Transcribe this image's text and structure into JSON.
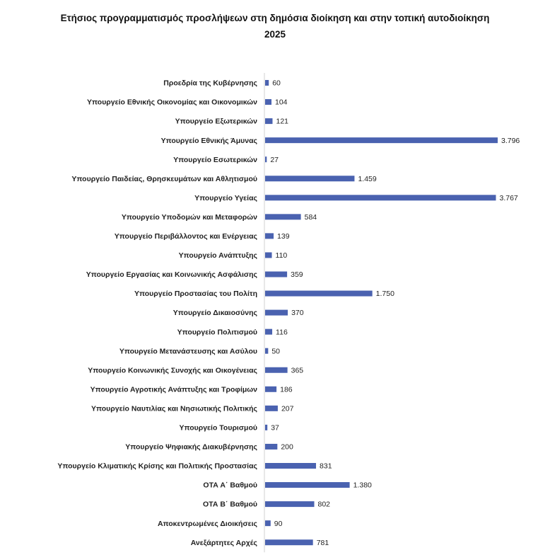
{
  "chart_data": {
    "type": "bar",
    "orientation": "horizontal",
    "title": "Ετήσιος προγραμματισμός προσλήψεων στη δημόσια διοίκηση και στην τοπική αυτοδιοίκηση 2025",
    "title_lines": [
      "Ετήσιος προγραμματισμός προσλήψεων στη δημόσια διοίκηση και στην τοπική αυτοδιοίκηση",
      "2025"
    ],
    "xlabel": "",
    "ylabel": "",
    "grid": false,
    "legend": "none",
    "bar_color": "#4a62b0",
    "categories": [
      "Προεδρία της Κυβέρνησης",
      "Υπουργείο Εθνικής Οικονομίας και Οικονομικών",
      "Υπουργείο Εξωτερικών",
      "Υπουργείο Εθνικής Άμυνας",
      "Υπουργείο Εσωτερικών",
      "Υπουργείο Παιδείας, Θρησκευμάτων και Αθλητισμού",
      "Υπουργείο Υγείας",
      "Υπουργείο Υποδομών και Μεταφορών",
      "Υπουργείο Περιβάλλοντος και Ενέργειας",
      "Υπουργείο Ανάπτυξης",
      "Υπουργείο Εργασίας και Κοινωνικής Ασφάλισης",
      "Υπουργείο Προστασίας του Πολίτη",
      "Υπουργείο Δικαιοσύνης",
      "Υπουργείο Πολιτισμού",
      "Υπουργείο Μετανάστευσης και Ασύλου",
      "Υπουργείο Κοινωνικής Συνοχής και Οικογένειας",
      "Υπουργείο Αγροτικής Ανάπτυξης και Τροφίμων",
      "Υπουργείο Ναυτιλίας και Νησιωτικής Πολιτικής",
      "Υπουργείο Τουρισμού",
      "Υπουργείο Ψηφιακής Διακυβέρνησης",
      "Υπουργείο Κλιματικής Κρίσης και Πολιτικής Προστασίας",
      "ΟΤΑ Α΄ Βαθμού",
      "ΟΤΑ Β΄ Βαθμού",
      "Αποκεντρωμένες Διοικήσεις",
      "Ανεξάρτητες Αρχές"
    ],
    "values": [
      60,
      104,
      121,
      3796,
      27,
      1459,
      3767,
      584,
      139,
      110,
      359,
      1750,
      370,
      116,
      50,
      365,
      186,
      207,
      37,
      200,
      831,
      1380,
      802,
      90,
      781
    ],
    "value_labels": [
      "60",
      "104",
      "121",
      "3.796",
      "27",
      "1.459",
      "3.767",
      "584",
      "139",
      "110",
      "359",
      "1.750",
      "370",
      "116",
      "50",
      "365",
      "186",
      "207",
      "37",
      "200",
      "831",
      "1.380",
      "802",
      "90",
      "781"
    ],
    "xlim": [
      0,
      3796
    ]
  }
}
